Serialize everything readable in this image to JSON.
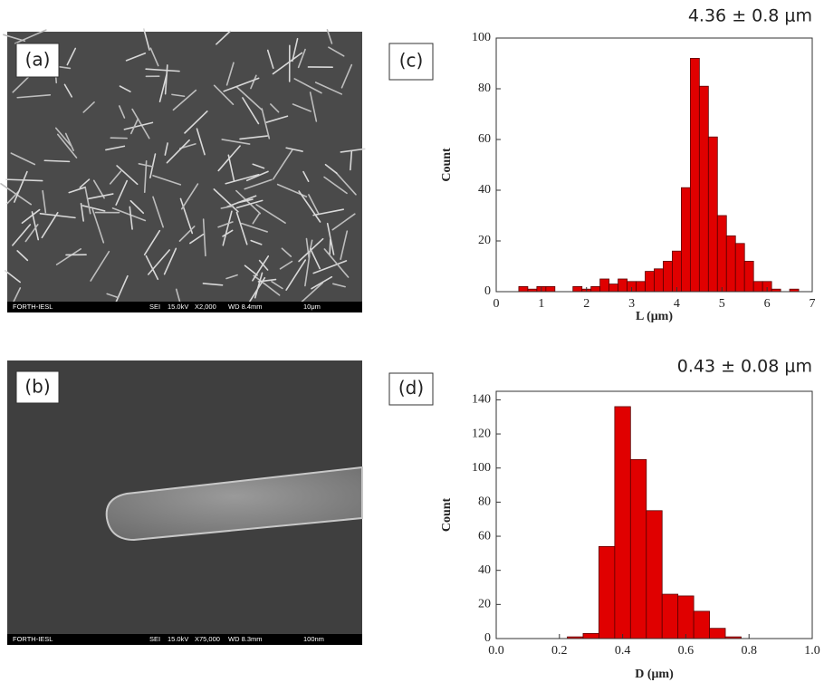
{
  "panels": [
    {
      "label": "(a)",
      "info": [
        "FORTH-IESL",
        "SEI",
        "15.0kV",
        "X2,000",
        "WD 8.4mm",
        "10μm"
      ]
    },
    {
      "label": "(b)",
      "info": [
        "FORTH-IESL",
        "SEI",
        "15.0kV",
        "X75,000",
        "WD 8.3mm",
        "100nm"
      ]
    }
  ],
  "chart_data": [
    {
      "type": "histogram",
      "label": "(c)",
      "annotation": "4.36 ± 0.8 μm",
      "x_label": "L (μm)",
      "y_label": "Count",
      "color": "#e00000",
      "bins": [
        0.5,
        0.7,
        0.9,
        1.1,
        1.3,
        1.5,
        1.7,
        1.9,
        2.1,
        2.3,
        2.5,
        2.7,
        2.9,
        3.1,
        3.3,
        3.5,
        3.7,
        3.9,
        4.1,
        4.3,
        4.5,
        4.7,
        4.9,
        5.1,
        5.3,
        5.5,
        5.7,
        5.9,
        6.1,
        6.3,
        6.5,
        6.7
      ],
      "values": [
        2,
        1,
        2,
        2,
        0,
        0,
        2,
        1,
        2,
        5,
        3,
        5,
        4,
        4,
        8,
        9,
        12,
        16,
        41,
        92,
        81,
        61,
        30,
        22,
        19,
        12,
        4,
        4,
        1,
        0,
        1
      ],
      "xlim": [
        0,
        7
      ],
      "xticks": [
        0,
        1,
        2,
        3,
        4,
        5,
        6,
        7
      ],
      "ylim": [
        0,
        100
      ],
      "yticks": [
        0,
        20,
        40,
        60,
        80,
        100
      ]
    },
    {
      "type": "histogram",
      "label": "(d)",
      "annotation": "0.43 ± 0.08 μm",
      "x_label": "D (μm)",
      "y_label": "Count",
      "color": "#e00000",
      "bins": [
        0.225,
        0.275,
        0.325,
        0.375,
        0.425,
        0.475,
        0.525,
        0.575,
        0.625,
        0.675,
        0.725,
        0.775
      ],
      "values": [
        1,
        3,
        54,
        136,
        105,
        75,
        26,
        25,
        16,
        6,
        1
      ],
      "xlim": [
        0,
        1
      ],
      "xticks": [
        {
          "value": 0,
          "label": "0.0"
        },
        {
          "value": 0.2,
          "label": "0.2"
        },
        {
          "value": 0.4,
          "label": "0.4"
        },
        {
          "value": 0.6,
          "label": "0.6"
        },
        {
          "value": 0.8,
          "label": "0.8"
        },
        {
          "value": 1,
          "label": "1.0"
        }
      ],
      "ylim": [
        0,
        145
      ],
      "yticks": [
        0,
        20,
        40,
        60,
        80,
        100,
        120,
        140
      ]
    }
  ]
}
